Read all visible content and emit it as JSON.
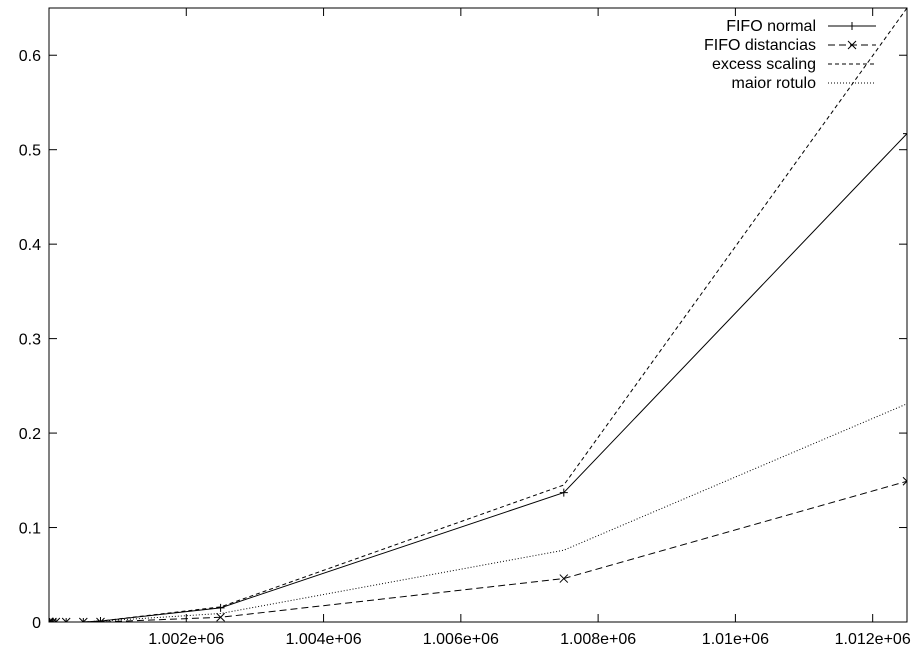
{
  "chart_data": {
    "type": "line",
    "title": "",
    "xlabel": "",
    "ylabel": "",
    "xlim": [
      1000000,
      1012500
    ],
    "ylim": [
      0,
      0.65
    ],
    "grid": false,
    "legend_position": "top-right",
    "x_ticks": [
      {
        "value": 1002000,
        "label": "1.002e+06"
      },
      {
        "value": 1004000,
        "label": "1.004e+06"
      },
      {
        "value": 1006000,
        "label": "1.006e+06"
      },
      {
        "value": 1008000,
        "label": "1.008e+06"
      },
      {
        "value": 1010000,
        "label": "1.01e+06"
      },
      {
        "value": 1012000,
        "label": "1.012e+06"
      }
    ],
    "y_ticks": [
      {
        "value": 0,
        "label": "0"
      },
      {
        "value": 0.1,
        "label": "0.1"
      },
      {
        "value": 0.2,
        "label": "0.2"
      },
      {
        "value": 0.3,
        "label": "0.3"
      },
      {
        "value": 0.4,
        "label": "0.4"
      },
      {
        "value": 0.5,
        "label": "0.5"
      },
      {
        "value": 0.6,
        "label": "0.6"
      }
    ],
    "series": [
      {
        "name": "FIFO normal",
        "style": "solid",
        "marker": "plus",
        "x": [
          1000000,
          1000005,
          1000010,
          1000050,
          1000100,
          1000250,
          1000500,
          1000750,
          1002500,
          1007500,
          1012500
        ],
        "y": [
          0,
          0,
          0,
          0,
          0,
          0,
          0,
          0.001,
          0.015,
          0.137,
          0.517
        ]
      },
      {
        "name": "FIFO distancias",
        "style": "dashed",
        "marker": "x",
        "x": [
          1000000,
          1000005,
          1000010,
          1000050,
          1000100,
          1000250,
          1000500,
          1000750,
          1002500,
          1007500,
          1012500
        ],
        "y": [
          0,
          0,
          0,
          0,
          0,
          0,
          0,
          0,
          0.005,
          0.046,
          0.149
        ]
      },
      {
        "name": "excess scaling",
        "style": "short-dash",
        "marker": "none",
        "x": [
          1000000,
          1000005,
          1000010,
          1000050,
          1000100,
          1000250,
          1000500,
          1000750,
          1002500,
          1007500,
          1012500
        ],
        "y": [
          0,
          0,
          0,
          0,
          0,
          0,
          0,
          0.001,
          0.016,
          0.145,
          0.65
        ]
      },
      {
        "name": "maior rotulo",
        "style": "dotted",
        "marker": "none",
        "x": [
          1000000,
          1000005,
          1000010,
          1000050,
          1000100,
          1000250,
          1000500,
          1000750,
          1002500,
          1007500,
          1012500
        ],
        "y": [
          0,
          0,
          0,
          0,
          0,
          0,
          0,
          0.001,
          0.009,
          0.076,
          0.231
        ]
      }
    ]
  }
}
